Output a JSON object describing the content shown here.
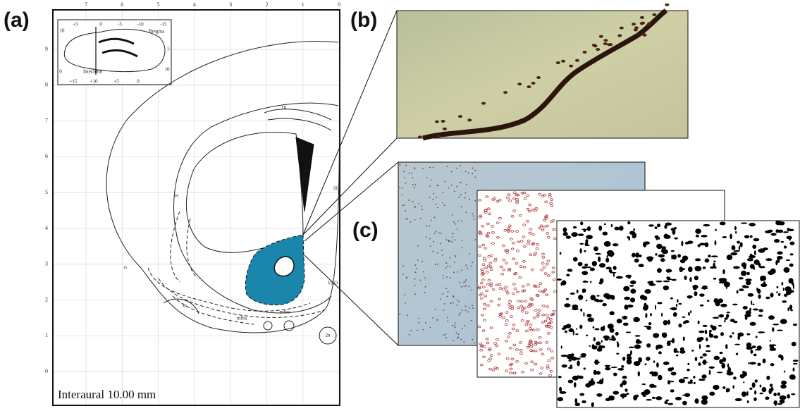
{
  "panels": {
    "a": {
      "label": "(a)",
      "caption": "Interaural 10.00 mm",
      "top_ticks": [
        "7",
        "6",
        "5",
        "4",
        "3",
        "2",
        "1",
        "0"
      ],
      "left_ticks": [
        "9",
        "8",
        "7",
        "6",
        "5",
        "4",
        "3",
        "2",
        "1",
        "0"
      ],
      "inset_labels": [
        "+5",
        "0",
        "-5",
        "-10",
        "-15",
        "Bregma",
        "10",
        "5",
        "0",
        "Interaural",
        "10",
        "+15",
        "+10",
        "+5",
        "0"
      ],
      "region_labels": [
        "cg",
        "LV",
        "ec",
        "SI",
        "rt",
        "lo",
        "mfba",
        "mfba",
        "VLO",
        "2n"
      ]
    },
    "b": {
      "label": "(b)"
    },
    "c": {
      "label": "(c)"
    }
  }
}
